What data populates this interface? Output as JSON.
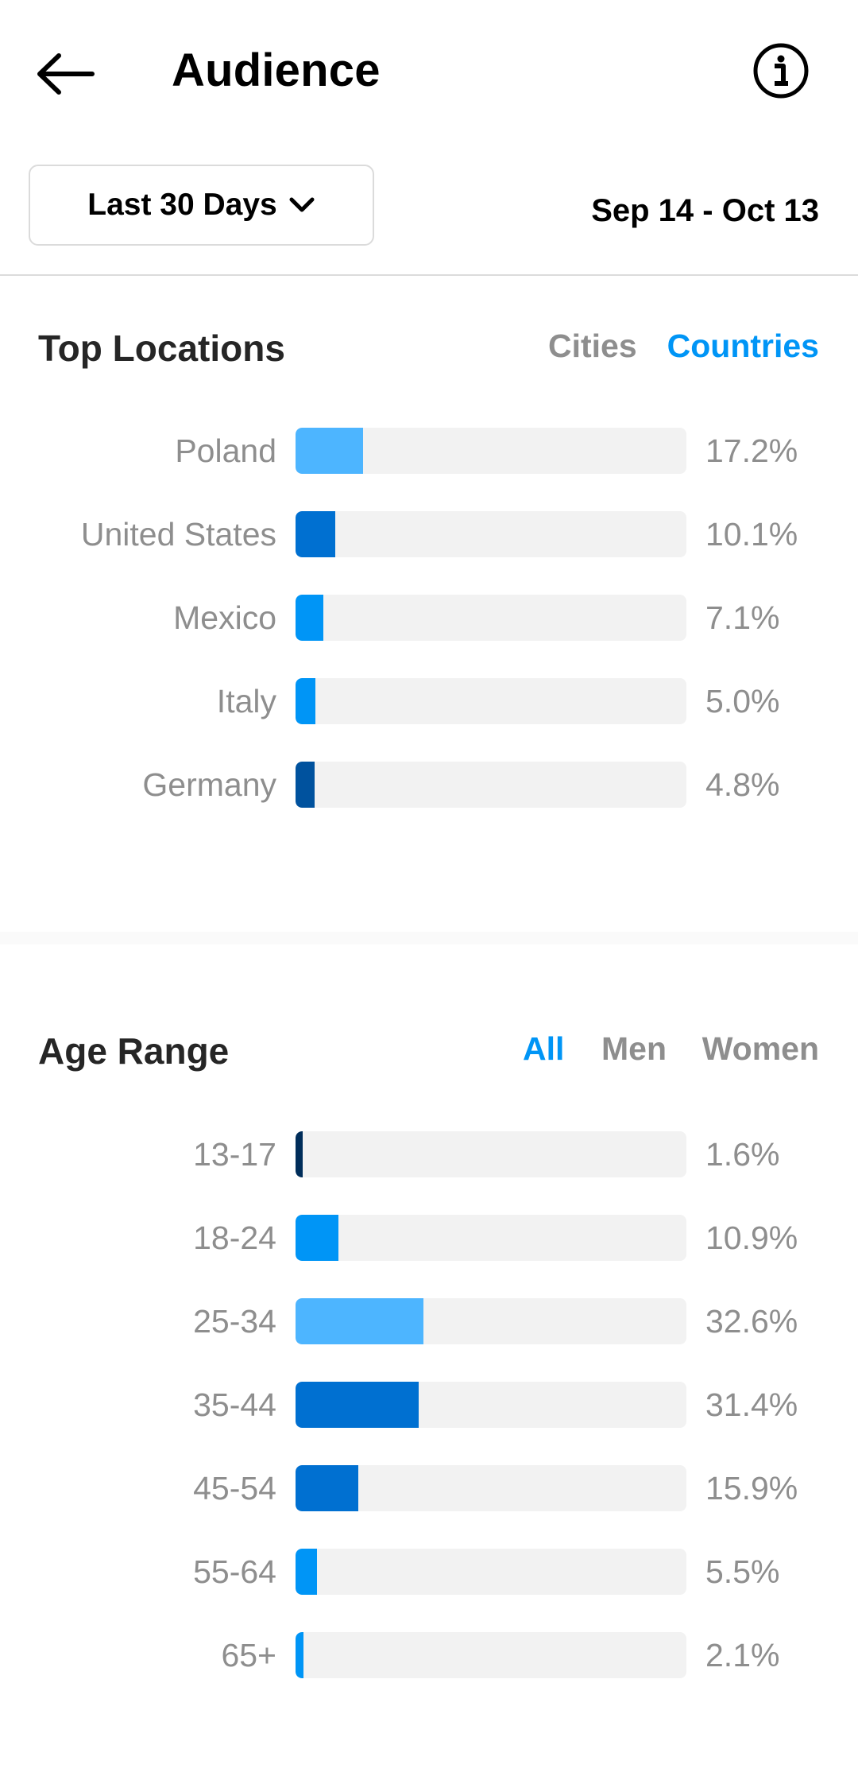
{
  "header": {
    "title": "Audience",
    "back_icon": "arrow-left-icon",
    "info_icon": "info-circle-icon"
  },
  "filter": {
    "range_label": "Last 30 Days",
    "date_range": "Sep 14 - Oct 13"
  },
  "colors": {
    "accent": "#0095f6",
    "muted": "#8e8e8e",
    "track": "#f2f2f2"
  },
  "top_locations": {
    "title": "Top Locations",
    "tabs": [
      {
        "label": "Cities",
        "active": false
      },
      {
        "label": "Countries",
        "active": true
      }
    ],
    "rows": [
      {
        "label": "Poland",
        "value": 17.2,
        "pct": "17.2%",
        "color": "#4db5ff"
      },
      {
        "label": "United States",
        "value": 10.1,
        "pct": "10.1%",
        "color": "#0070d1"
      },
      {
        "label": "Mexico",
        "value": 7.1,
        "pct": "7.1%",
        "color": "#0095f6"
      },
      {
        "label": "Italy",
        "value": 5.0,
        "pct": "5.0%",
        "color": "#0095f6"
      },
      {
        "label": "Germany",
        "value": 4.8,
        "pct": "4.8%",
        "color": "#00529e"
      }
    ]
  },
  "age_range": {
    "title": "Age Range",
    "tabs": [
      {
        "label": "All",
        "active": true
      },
      {
        "label": "Men",
        "active": false
      },
      {
        "label": "Women",
        "active": false
      }
    ],
    "rows": [
      {
        "label": "13-17",
        "value": 1.6,
        "pct": "1.6%",
        "color": "#002d5a"
      },
      {
        "label": "18-24",
        "value": 10.9,
        "pct": "10.9%",
        "color": "#0095f6"
      },
      {
        "label": "25-34",
        "value": 32.6,
        "pct": "32.6%",
        "color": "#4db5ff"
      },
      {
        "label": "35-44",
        "value": 31.4,
        "pct": "31.4%",
        "color": "#0070d1"
      },
      {
        "label": "45-54",
        "value": 15.9,
        "pct": "15.9%",
        "color": "#0070d1"
      },
      {
        "label": "55-64",
        "value": 5.5,
        "pct": "5.5%",
        "color": "#0095f6"
      },
      {
        "label": "65+",
        "value": 2.1,
        "pct": "2.1%",
        "color": "#0095f6"
      }
    ]
  }
}
